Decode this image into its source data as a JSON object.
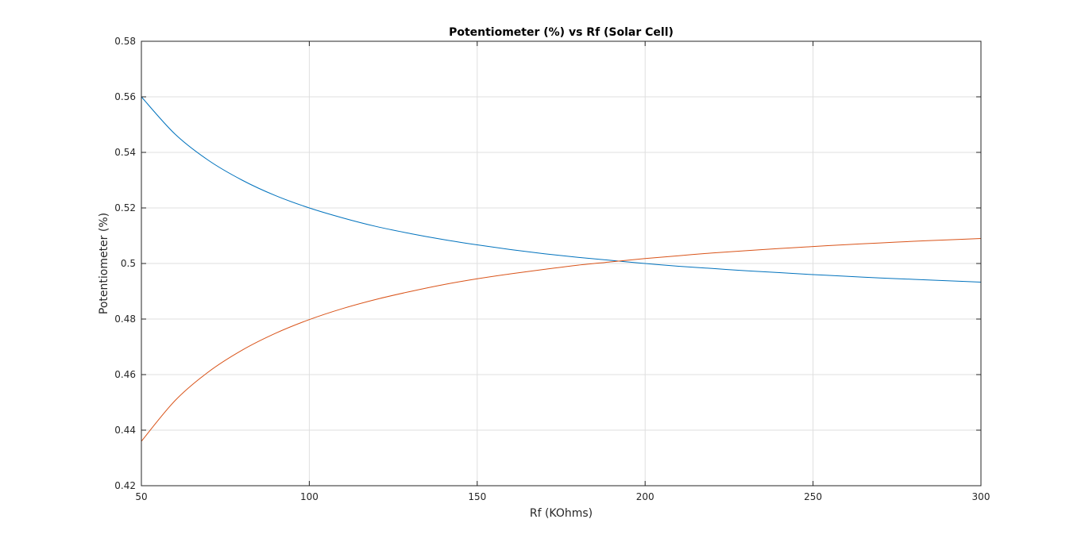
{
  "chart_data": {
    "type": "line",
    "title": "Potentiometer (%) vs Rf (Solar Cell)",
    "xlabel": "Rf (KOhms)",
    "ylabel": "Potentiometer (%)",
    "xlim": [
      50,
      300
    ],
    "ylim": [
      0.42,
      0.58
    ],
    "xticks": [
      50,
      100,
      150,
      200,
      250,
      300
    ],
    "xtick_labels": [
      "50",
      "100",
      "150",
      "200",
      "250",
      "300"
    ],
    "yticks": [
      0.42,
      0.44,
      0.46,
      0.48,
      0.5,
      0.52,
      0.54,
      0.56,
      0.58
    ],
    "ytick_labels": [
      "0.42",
      "0.44",
      "0.46",
      "0.48",
      "0.5",
      "0.52",
      "0.54",
      "0.56",
      "0.58"
    ],
    "grid": true,
    "legend": "none",
    "x": [
      50,
      60,
      70,
      80,
      90,
      100,
      110,
      120,
      130,
      140,
      150,
      160,
      170,
      180,
      190,
      200,
      210,
      220,
      230,
      240,
      250,
      260,
      270,
      280,
      290,
      300
    ],
    "series": [
      {
        "color": "#0072BD",
        "values": [
          0.56,
          0.5466,
          0.5371,
          0.53,
          0.5244,
          0.52,
          0.5164,
          0.5133,
          0.5108,
          0.5086,
          0.5067,
          0.505,
          0.5035,
          0.5022,
          0.5011,
          0.5,
          0.499,
          0.4982,
          0.4974,
          0.4967,
          0.496,
          0.4954,
          0.4948,
          0.4943,
          0.4938,
          0.4933
        ]
      },
      {
        "color": "#D95319",
        "values": [
          0.436,
          0.4506,
          0.461,
          0.4688,
          0.4749,
          0.4798,
          0.4838,
          0.4871,
          0.4899,
          0.4924,
          0.4945,
          0.4963,
          0.4979,
          0.4994,
          0.5006,
          0.5018,
          0.5028,
          0.5038,
          0.5046,
          0.5054,
          0.5061,
          0.5068,
          0.5074,
          0.508,
          0.5085,
          0.509
        ]
      }
    ]
  }
}
